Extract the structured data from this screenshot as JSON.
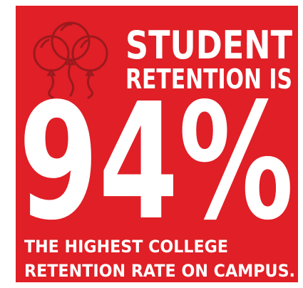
{
  "headline": {
    "line1": "STUDENT",
    "line2": "RETENTION IS"
  },
  "stat": "94%",
  "footer": {
    "line1": "THE HIGHEST COLLEGE",
    "line2": "RETENTION RATE ON CAMPUS."
  }
}
